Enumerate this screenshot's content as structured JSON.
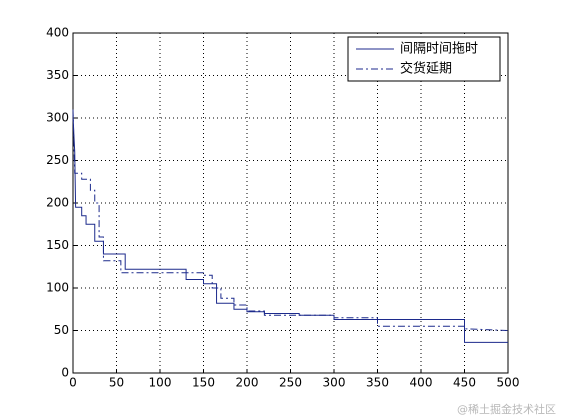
{
  "chart_data": {
    "type": "line",
    "series": [
      {
        "name": "间隔时间拖时",
        "color": "#1c2a8c",
        "dash": "solid",
        "x": [
          0,
          1,
          2,
          3,
          10,
          10,
          15,
          15,
          25,
          25,
          35,
          35,
          60,
          60,
          130,
          130,
          150,
          150,
          165,
          165,
          185,
          185,
          200,
          200,
          220,
          220,
          260,
          260,
          300,
          300,
          450,
          450,
          500
        ],
        "values": [
          305,
          280,
          260,
          195,
          195,
          185,
          185,
          175,
          175,
          155,
          155,
          140,
          140,
          122,
          122,
          110,
          110,
          105,
          105,
          82,
          82,
          75,
          75,
          72,
          72,
          70,
          70,
          68,
          68,
          63,
          63,
          36,
          36
        ]
      },
      {
        "name": "交货延期",
        "color": "#1c2a8c",
        "dash": "dashdot",
        "x": [
          0,
          2,
          10,
          10,
          20,
          20,
          25,
          25,
          30,
          30,
          35,
          35,
          55,
          55,
          150,
          150,
          160,
          160,
          170,
          170,
          185,
          185,
          200,
          200,
          220,
          220,
          300,
          300,
          350,
          350,
          450,
          450,
          500
        ],
        "values": [
          310,
          235,
          235,
          228,
          228,
          215,
          215,
          200,
          200,
          160,
          160,
          132,
          132,
          118,
          118,
          115,
          115,
          100,
          100,
          88,
          88,
          80,
          80,
          73,
          73,
          68,
          68,
          65,
          65,
          55,
          55,
          52,
          50
        ]
      }
    ],
    "xlim": [
      0,
      500
    ],
    "xticks": [
      0,
      50,
      100,
      150,
      200,
      250,
      300,
      350,
      400,
      450,
      500
    ],
    "ylim": [
      0,
      400
    ],
    "yticks": [
      0,
      50,
      100,
      150,
      200,
      250,
      300,
      350,
      400
    ],
    "grid": true,
    "legend": "upper-right"
  },
  "watermark": "@稀土掘金技术社区"
}
